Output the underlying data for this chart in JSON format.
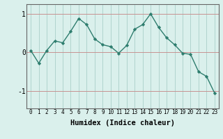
{
  "x": [
    0,
    1,
    2,
    3,
    4,
    5,
    6,
    7,
    8,
    9,
    10,
    11,
    12,
    13,
    14,
    15,
    16,
    17,
    18,
    19,
    20,
    21,
    22,
    23
  ],
  "y": [
    0.05,
    -0.28,
    0.05,
    0.3,
    0.25,
    0.55,
    0.88,
    0.72,
    0.35,
    0.2,
    0.15,
    -0.02,
    0.18,
    0.6,
    0.72,
    1.0,
    0.65,
    0.38,
    0.2,
    -0.02,
    -0.05,
    -0.5,
    -0.62,
    -1.05
  ],
  "line_color": "#2e7d6e",
  "marker": "D",
  "marker_size": 2.2,
  "line_width": 1.0,
  "bg_color": "#daf0ec",
  "grid_color": "#aacfc9",
  "xlabel": "Humidex (Indice chaleur)",
  "xlabel_fontsize": 7.5,
  "xtick_labels": [
    "0",
    "1",
    "2",
    "3",
    "4",
    "5",
    "6",
    "7",
    "8",
    "9",
    "10",
    "11",
    "12",
    "13",
    "14",
    "15",
    "16",
    "17",
    "18",
    "19",
    "20",
    "21",
    "22",
    "23"
  ],
  "ytick_labels": [
    -1,
    0,
    1
  ],
  "ylim": [
    -1.45,
    1.25
  ],
  "xlim": [
    -0.5,
    23.5
  ]
}
